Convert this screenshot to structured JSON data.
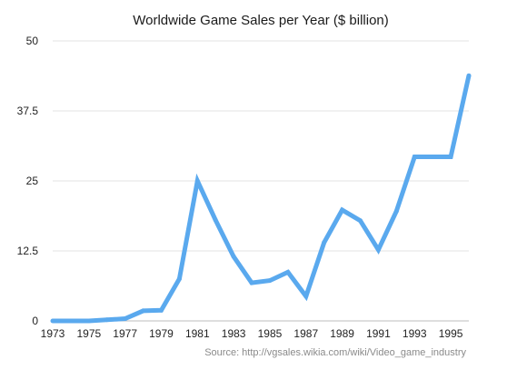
{
  "chart_data": {
    "type": "line",
    "title": "Worldwide Game Sales per Year ($ billion)",
    "xlabel": "",
    "ylabel": "",
    "x_ticks": [
      "1973",
      "1975",
      "1977",
      "1979",
      "1981",
      "1983",
      "1985",
      "1987",
      "1989",
      "1991",
      "1993",
      "1995"
    ],
    "y_ticks": [
      "0",
      "12.5",
      "25",
      "37.5",
      "50"
    ],
    "xlim": [
      1973,
      1996
    ],
    "ylim": [
      0,
      50
    ],
    "grid": true,
    "series": [
      {
        "color": "#5aa9ee",
        "x": [
          1973,
          1974,
          1975,
          1976,
          1977,
          1978,
          1979,
          1980,
          1981,
          1982,
          1983,
          1984,
          1985,
          1986,
          1987,
          1988,
          1989,
          1990,
          1991,
          1992,
          1993,
          1994,
          1995,
          1996
        ],
        "y": [
          0,
          0,
          0,
          0.2,
          0.4,
          1.8,
          1.9,
          7.5,
          25,
          18,
          11.5,
          6.8,
          7.2,
          8.7,
          4.4,
          14,
          19.8,
          17.9,
          12.7,
          19.6,
          29.3,
          29.3,
          29.3,
          43.8
        ]
      }
    ],
    "source": "Source: http://vgsales.wikia.com/wiki/Video_game_industry"
  }
}
